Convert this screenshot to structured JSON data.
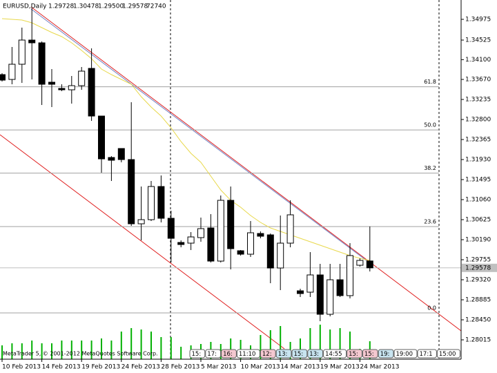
{
  "chart_data": {
    "type": "candlestick",
    "header": {
      "symbol": "EURUSD,Daily",
      "open": "1.29728",
      "high": "1.30478",
      "low": "1.29500",
      "close": "1.29578",
      "volume": "72740"
    },
    "categories": [
      "10 Feb 2013",
      null,
      null,
      null,
      "14 Feb 2013",
      null,
      null,
      null,
      "19 Feb 2013",
      null,
      null,
      null,
      "24 Feb 2013",
      null,
      null,
      null,
      "28 Feb 2013",
      null,
      null,
      null,
      "5 Mar 2013",
      null,
      null,
      null,
      "10 Mar 2013",
      null,
      null,
      null,
      "14 Mar 2013",
      null,
      null,
      null,
      "19 Mar 2013",
      null,
      null,
      null,
      "24 Mar 2013",
      null
    ],
    "open": [
      1.33775,
      1.3367,
      1.34,
      1.34525,
      1.34465,
      1.3361,
      1.33475,
      1.33445,
      1.33535,
      1.3391,
      1.32875,
      1.31975,
      1.3217,
      1.3193,
      1.30535,
      1.30625,
      1.31345,
      1.30655,
      1.3013,
      1.30115,
      1.30235,
      1.30445,
      1.29725,
      1.31045,
      1.2995,
      1.29875,
      1.30325,
      1.30295,
      1.29575,
      1.30115,
      1.2908,
      1.2905,
      1.29425,
      1.2857,
      1.2932,
      1.28975,
      1.29635,
      1.29728
    ],
    "high": [
      1.33805,
      1.34375,
      1.34795,
      1.35215,
      1.34495,
      1.33895,
      1.33565,
      1.33745,
      1.3394,
      1.34345,
      1.32875,
      1.32005,
      1.3217,
      1.33175,
      1.31345,
      1.31465,
      1.31585,
      1.3082,
      1.30175,
      1.30355,
      1.3067,
      1.30745,
      1.3115,
      1.31345,
      1.29965,
      1.30595,
      1.3037,
      1.30325,
      1.30715,
      1.31045,
      1.29125,
      1.2992,
      1.29665,
      1.29665,
      1.29665,
      1.30115,
      1.29785,
      1.30478
    ],
    "low": [
      1.33625,
      1.33565,
      1.33595,
      1.3367,
      1.33115,
      1.3307,
      1.33415,
      1.33145,
      1.33445,
      1.3277,
      1.31645,
      1.31465,
      1.3187,
      1.3049,
      1.30175,
      1.30595,
      1.30565,
      1.29695,
      1.30025,
      1.29965,
      1.30145,
      1.29695,
      1.29695,
      1.29545,
      1.29845,
      1.29815,
      1.3022,
      1.29245,
      1.29095,
      1.30025,
      1.28945,
      1.28945,
      1.2842,
      1.28525,
      1.28945,
      1.28915,
      1.29605,
      1.295
    ],
    "close": [
      1.33655,
      1.34,
      1.34525,
      1.34465,
      1.33565,
      1.33565,
      1.33445,
      1.33535,
      1.3385,
      1.32875,
      1.31945,
      1.31915,
      1.3193,
      1.30535,
      1.30625,
      1.31345,
      1.30655,
      1.3022,
      1.30085,
      1.3025,
      1.3043,
      1.29725,
      1.31045,
      1.29995,
      1.29875,
      1.3034,
      1.30265,
      1.29575,
      1.30115,
      1.3073,
      1.2902,
      1.29425,
      1.2857,
      1.2932,
      1.28975,
      1.29845,
      1.2974,
      1.29578
    ],
    "volumes": [
      56000,
      64400,
      64400,
      75600,
      64400,
      64400,
      75600,
      75600,
      75600,
      75600,
      84000,
      75600,
      112000,
      126000,
      120400,
      112000,
      89600,
      89600,
      50400,
      56000,
      61600,
      70000,
      61600,
      84000,
      78400,
      56000,
      98000,
      117600,
      134400,
      70000,
      84000,
      126000,
      140000,
      120400,
      126000,
      112000,
      42000,
      72740
    ],
    "moving_average": [
      1.3499,
      1.34975,
      1.3496,
      1.349,
      1.34795,
      1.3469,
      1.346,
      1.34465,
      1.343,
      1.3412,
      1.33895,
      1.33775,
      1.3367,
      1.33565,
      1.33295,
      1.3307,
      1.32875,
      1.3262,
      1.3232,
      1.32065,
      1.3187,
      1.3157,
      1.3127,
      1.31045,
      1.30895,
      1.30715,
      1.30565,
      1.30445,
      1.3037,
      1.30295,
      1.3022,
      1.30145,
      1.3007,
      1.29995,
      1.2992,
      1.29845,
      1.29785,
      1.2974
    ],
    "fib_levels": [
      {
        "ratio": 61.8,
        "price": 1.3351
      },
      {
        "ratio": {
          "value": 50,
          "label": "50.0"
        },
        "price": 1.32573
      },
      {
        "ratio": 38.2,
        "price": 1.31635
      },
      {
        "ratio": 23.6,
        "price": 1.30475
      },
      {
        "ratio": {
          "value": 0,
          "label": "0.0"
        },
        "price": 1.286
      }
    ],
    "ylim": [
      1.27595,
      1.35395
    ],
    "yticks": [
      1.34975,
      1.34525,
      {
        "value": 1.341,
        "label": "1.34100"
      },
      {
        "value": 1.3367,
        "label": "1.33670"
      },
      1.33235,
      {
        "value": 1.328,
        "label": "1.32800"
      },
      1.32365,
      {
        "value": 1.3193,
        "label": "1.31930"
      },
      1.31495,
      {
        "value": 1.3106,
        "label": "1.31060"
      },
      1.30625,
      {
        "value": 1.3019,
        "label": "1.30190"
      },
      1.29755,
      {
        "value": 1.2932,
        "label": "1.29320"
      },
      1.28885,
      {
        "value": 1.2845,
        "label": "1.28450"
      },
      1.28015
    ],
    "colors": {
      "bull": "#ffffff",
      "bear": "#000000",
      "volume": "#00b000",
      "ma": "#e8d84a",
      "fib": "#a0a0a0"
    },
    "events": [
      {
        "text": "15:",
        "color": "#ffffff"
      },
      {
        "text": "17:",
        "color": "#ffffff"
      },
      {
        "text": "16:",
        "color": "#f4c8d0"
      },
      {
        "text": "11:10",
        "color": "#ffffff"
      },
      {
        "text": "12:",
        "color": "#f4c8d0"
      },
      {
        "text": "13:",
        "color": "#c8e4f0"
      },
      {
        "text": "15:",
        "color": "#c8e4f0"
      },
      {
        "text": "13:",
        "color": "#c8e4f0"
      },
      {
        "text": "14:55",
        "color": "#ffffff"
      },
      {
        "text": "15:",
        "color": "#f4c8d0"
      },
      {
        "text": "15:",
        "color": "#f4c8d0"
      },
      {
        "text": "19:",
        "color": "#c8e4f0"
      },
      {
        "text": "19:00",
        "color": "#ffffff"
      },
      {
        "text": "17:1",
        "color": "#ffffff"
      },
      {
        "text": "15:00",
        "color": "#ffffff"
      }
    ],
    "footer": "MetaTrader 5, © 2001-2012 MetaQuotes Software Corp."
  }
}
